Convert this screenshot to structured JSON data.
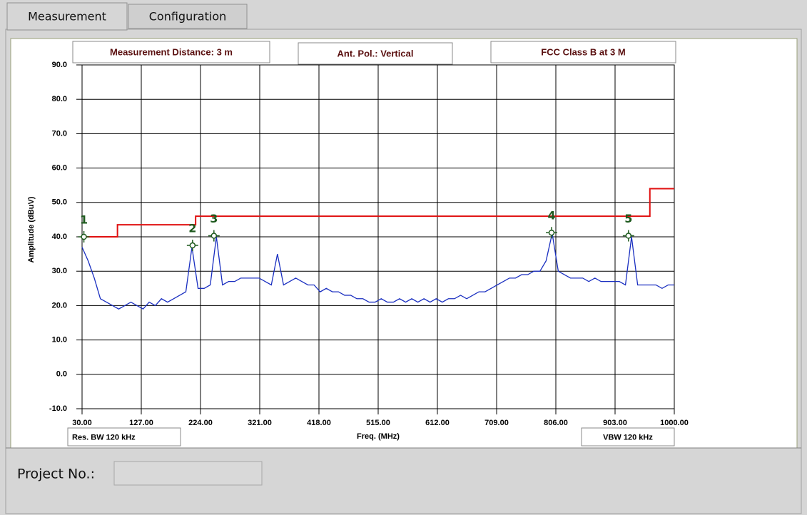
{
  "tabs": [
    {
      "label": "Measurement",
      "active": true
    },
    {
      "label": "Configuration"
    }
  ],
  "chart_data": {
    "type": "line",
    "annotations": [
      "Measurement Distance: 3 m",
      "Ant. Pol.: Vertical",
      "FCC Class B at 3 M",
      "Res. BW 120 kHz",
      "VBW 120 kHz"
    ],
    "xlabel": "Freq. (MHz)",
    "ylabel": "Amplitude (dBuV)",
    "xlim": [
      30,
      1000
    ],
    "ylim": [
      -10,
      90
    ],
    "grid": true,
    "xticks": [
      {
        "value": 30,
        "label": "30.00"
      },
      {
        "value": 127,
        "label": "127.00"
      },
      {
        "value": 224,
        "label": "224.00"
      },
      {
        "value": 321,
        "label": "321.00"
      },
      {
        "value": 418,
        "label": "418.00"
      },
      {
        "value": 515,
        "label": "515.00"
      },
      {
        "value": 612,
        "label": "612.00"
      },
      {
        "value": 709,
        "label": "709.00"
      },
      {
        "value": 806,
        "label": "806.00"
      },
      {
        "value": 903,
        "label": "903.00"
      },
      {
        "value": 1000,
        "label": "1000.00"
      }
    ],
    "yticks": [
      {
        "value": -10,
        "label": "-10.0"
      },
      {
        "value": 0,
        "label": "0.0"
      },
      {
        "value": 10,
        "label": "10.0"
      },
      {
        "value": 20,
        "label": "20.0"
      },
      {
        "value": 30,
        "label": "30.0"
      },
      {
        "value": 40,
        "label": "40.0"
      },
      {
        "value": 50,
        "label": "50.0"
      },
      {
        "value": 60,
        "label": "60.0"
      },
      {
        "value": 70,
        "label": "70.0"
      },
      {
        "value": 80,
        "label": "80.0"
      },
      {
        "value": 90,
        "label": "90.0"
      }
    ],
    "series": [
      {
        "color": "#e01010",
        "x": [
          30,
          88,
          88,
          216,
          216,
          960,
          960,
          1000
        ],
        "values": [
          40,
          40,
          43.5,
          43.5,
          46,
          46,
          54,
          54
        ]
      },
      {
        "color": "#1a2fc0",
        "x": [
          30,
          40,
          50,
          60,
          70,
          80,
          90,
          100,
          110,
          120,
          130,
          140,
          150,
          160,
          170,
          180,
          190,
          200,
          210,
          220,
          230,
          240,
          250,
          260,
          270,
          280,
          290,
          300,
          310,
          320,
          330,
          340,
          350,
          360,
          370,
          380,
          390,
          400,
          410,
          420,
          430,
          440,
          450,
          460,
          470,
          480,
          490,
          500,
          510,
          520,
          530,
          540,
          550,
          560,
          570,
          580,
          590,
          600,
          610,
          620,
          630,
          640,
          650,
          660,
          670,
          680,
          690,
          700,
          710,
          720,
          730,
          740,
          750,
          760,
          770,
          780,
          790,
          800,
          810,
          820,
          830,
          840,
          850,
          860,
          870,
          880,
          890,
          900,
          910,
          920,
          930,
          940,
          950,
          960,
          970,
          980,
          990,
          1000
        ],
        "values": [
          37,
          33,
          28,
          22,
          21,
          20,
          19,
          20,
          21,
          20,
          19,
          21,
          20,
          22,
          21,
          22,
          23,
          24,
          37,
          25,
          25,
          26,
          40,
          26,
          27,
          27,
          28,
          28,
          28,
          28,
          27,
          26,
          35,
          26,
          27,
          28,
          27,
          26,
          26,
          24,
          25,
          24,
          24,
          23,
          23,
          22,
          22,
          21,
          21,
          22,
          21,
          21,
          22,
          21,
          22,
          21,
          22,
          21,
          22,
          21,
          22,
          22,
          23,
          22,
          23,
          24,
          24,
          25,
          26,
          27,
          28,
          28,
          29,
          29,
          30,
          30,
          33,
          41,
          30,
          29,
          28,
          28,
          28,
          27,
          28,
          27,
          27,
          27,
          27,
          26,
          40,
          26,
          26,
          26,
          26,
          25,
          26,
          26
        ]
      }
    ],
    "markers": {
      "color": "#1e5a1e",
      "labels": [
        "1",
        "2",
        "3",
        "4",
        "5"
      ],
      "x": [
        33,
        211,
        246,
        799,
        925
      ],
      "values": [
        40,
        37.5,
        40.3,
        41.2,
        40.3
      ]
    }
  },
  "project": {
    "label": "Project No.:"
  }
}
